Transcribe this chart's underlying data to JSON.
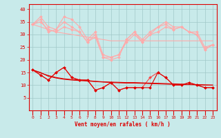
{
  "background_color": "#c8eaea",
  "grid_color": "#a0c8c8",
  "red_dark": "#dd0000",
  "red_light": "#ffaaaa",
  "red_mid": "#ff8888",
  "xlabel": "Vent moyen/en rafales ( km/h )",
  "ylim": [
    0,
    42
  ],
  "yticks": [
    5,
    10,
    15,
    20,
    25,
    30,
    35,
    40
  ],
  "x_labels": [
    "0",
    "1",
    "2",
    "3",
    "4",
    "5",
    "6",
    "7",
    "8",
    "9",
    "10",
    "11",
    "12",
    "13",
    "14",
    "15",
    "16",
    "17",
    "18",
    "19",
    "20",
    "21",
    "22",
    "23"
  ],
  "series": [
    {
      "name": "rafales_line1",
      "color": "#ffaaaa",
      "lw": 0.8,
      "marker": "D",
      "ms": 2.0,
      "values": [
        34,
        37,
        33,
        32,
        37,
        36,
        33,
        28,
        31,
        22,
        21,
        22,
        28,
        31,
        28,
        31,
        33,
        35,
        33,
        33,
        31,
        31,
        25,
        26
      ]
    },
    {
      "name": "rafales_trend",
      "color": "#ffaaaa",
      "lw": 0.8,
      "marker": null,
      "ms": 0,
      "values": [
        34,
        33,
        32,
        31,
        30.5,
        30,
        29.5,
        29,
        28.5,
        28,
        27.5,
        27.5,
        27.5,
        27.5,
        27.5,
        27.5,
        27.5,
        27.5,
        27.5,
        27.5,
        27.5,
        27.5,
        27.5,
        27.5
      ]
    },
    {
      "name": "rafales_line2",
      "color": "#ffaaaa",
      "lw": 0.8,
      "marker": "D",
      "ms": 2.0,
      "values": [
        34,
        36,
        31,
        32,
        35,
        33,
        31,
        27,
        30,
        21,
        20,
        21,
        28,
        31,
        27,
        30,
        33,
        34,
        32,
        33,
        31,
        30,
        24,
        26
      ]
    },
    {
      "name": "rafales_midline",
      "color": "#ffaaaa",
      "lw": 0.8,
      "marker": "D",
      "ms": 2.0,
      "values": [
        34,
        35,
        32,
        31,
        33,
        32,
        31,
        27,
        29,
        21,
        21,
        22,
        27,
        30,
        27,
        30,
        31,
        33,
        32,
        33,
        31,
        30,
        24,
        26
      ]
    },
    {
      "name": "moy_line1",
      "color": "#ff4444",
      "lw": 0.8,
      "marker": "D",
      "ms": 2.0,
      "values": [
        16,
        14,
        12,
        15,
        17,
        13,
        12,
        12,
        8,
        9,
        11,
        8,
        9,
        9,
        9,
        13,
        15,
        13,
        10,
        10,
        11,
        10,
        9,
        9
      ]
    },
    {
      "name": "moy_line2",
      "color": "#dd0000",
      "lw": 0.8,
      "marker": "D",
      "ms": 2.0,
      "values": [
        16,
        14,
        12,
        15,
        17,
        13,
        12,
        12,
        8,
        9,
        11,
        8,
        9,
        9,
        9,
        9,
        15,
        13,
        10,
        10,
        11,
        10,
        9,
        9
      ]
    },
    {
      "name": "moy_trend1",
      "color": "#dd0000",
      "lw": 0.8,
      "marker": null,
      "ms": 0,
      "values": [
        16,
        14.8,
        13.8,
        13.0,
        12.5,
        12.2,
        12.0,
        11.8,
        11.5,
        11.3,
        11.2,
        11.1,
        11.0,
        11.0,
        10.9,
        10.8,
        10.7,
        10.6,
        10.5,
        10.4,
        10.3,
        10.2,
        10.1,
        10.0
      ]
    },
    {
      "name": "moy_trend2",
      "color": "#dd0000",
      "lw": 0.8,
      "marker": null,
      "ms": 0,
      "values": [
        16,
        15.0,
        13.5,
        12.8,
        12.3,
        12.0,
        11.8,
        11.6,
        11.4,
        11.2,
        11.0,
        10.9,
        10.8,
        10.8,
        10.7,
        10.6,
        10.5,
        10.4,
        10.3,
        10.2,
        10.2,
        10.1,
        10.0,
        10.0
      ]
    }
  ]
}
